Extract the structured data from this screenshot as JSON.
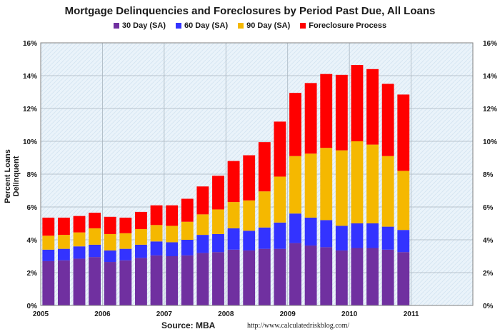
{
  "chart_data": {
    "type": "bar",
    "stacked": true,
    "title": "Mortgage Delinquencies and Foreclosures by Period Past Due, All Loans",
    "ylabel": "Percent Loans Delinquent",
    "xlabel": "",
    "ylim": [
      0,
      16
    ],
    "xlim": [
      2005,
      2012
    ],
    "yticks": [
      "0%",
      "2%",
      "4%",
      "6%",
      "8%",
      "10%",
      "12%",
      "14%",
      "16%"
    ],
    "xticks": [
      "2005",
      "2006",
      "2007",
      "2008",
      "2009",
      "2010",
      "2011"
    ],
    "grid": true,
    "legend_position": "top",
    "quarters": [
      "2005 Q1",
      "2005 Q2",
      "2005 Q3",
      "2005 Q4",
      "2006 Q1",
      "2006 Q2",
      "2006 Q3",
      "2006 Q4",
      "2007 Q1",
      "2007 Q2",
      "2007 Q3",
      "2007 Q4",
      "2008 Q1",
      "2008 Q2",
      "2008 Q3",
      "2008 Q4",
      "2009 Q1",
      "2009 Q2",
      "2009 Q3",
      "2009 Q4",
      "2010 Q1",
      "2010 Q2",
      "2010 Q3",
      "2010 Q4"
    ],
    "series": [
      {
        "name": "30 Day (SA)",
        "color": "#7030A0",
        "values": [
          2.7,
          2.75,
          2.85,
          2.95,
          2.65,
          2.75,
          2.9,
          3.05,
          3.0,
          3.05,
          3.2,
          3.25,
          3.4,
          3.35,
          3.45,
          3.45,
          3.8,
          3.65,
          3.55,
          3.35,
          3.5,
          3.5,
          3.4,
          3.25
        ]
      },
      {
        "name": "60 Day (SA)",
        "color": "#3333FF",
        "values": [
          0.7,
          0.7,
          0.75,
          0.75,
          0.7,
          0.7,
          0.8,
          0.85,
          0.85,
          0.95,
          1.1,
          1.1,
          1.3,
          1.2,
          1.3,
          1.6,
          1.8,
          1.7,
          1.65,
          1.5,
          1.5,
          1.5,
          1.4,
          1.35
        ]
      },
      {
        "name": "90 Day (SA)",
        "color": "#F5B800",
        "values": [
          0.85,
          0.85,
          0.85,
          1.0,
          1.0,
          0.95,
          0.95,
          1.0,
          1.0,
          1.1,
          1.25,
          1.5,
          1.6,
          1.85,
          2.2,
          2.8,
          3.5,
          3.9,
          4.4,
          4.6,
          5.0,
          4.8,
          4.3,
          3.6
        ]
      },
      {
        "name": "Foreclosure Process",
        "color": "#FF0000",
        "values": [
          1.1,
          1.05,
          1.0,
          0.95,
          1.05,
          0.95,
          1.05,
          1.2,
          1.25,
          1.4,
          1.7,
          2.05,
          2.5,
          2.75,
          3.0,
          3.35,
          3.85,
          4.3,
          4.5,
          4.6,
          4.65,
          4.6,
          4.4,
          4.65
        ]
      }
    ]
  },
  "source": "Source: MBA",
  "url": "http://www.calculatedriskblog.com/"
}
